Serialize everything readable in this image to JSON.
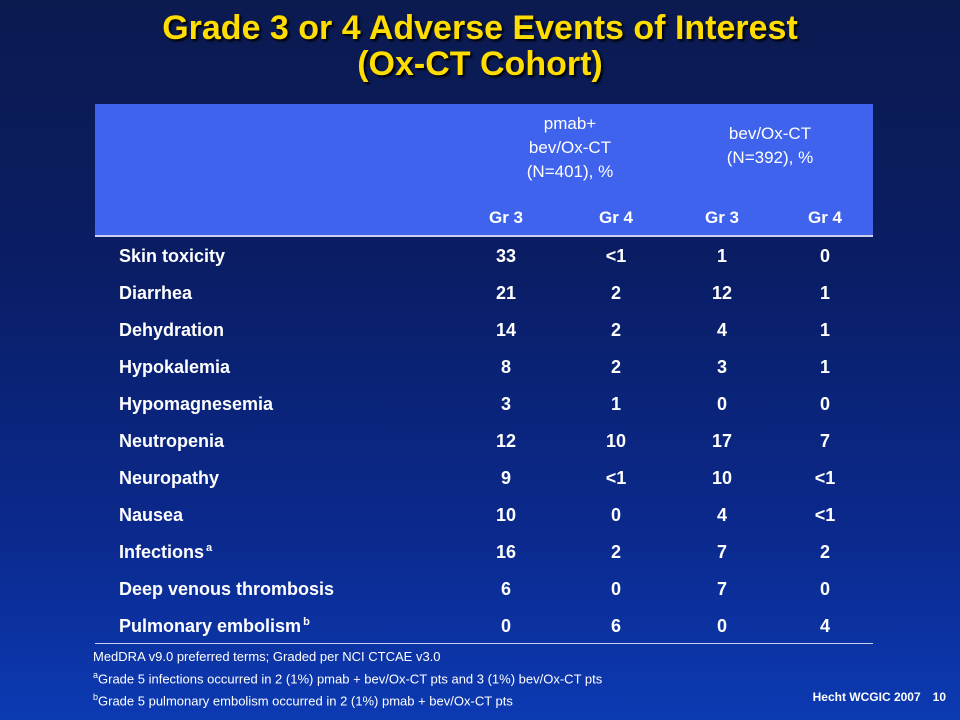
{
  "title": {
    "line1": "Grade 3 or 4 Adverse Events of Interest",
    "line2": "(Ox-CT Cohort)"
  },
  "table": {
    "group1": {
      "line1": "pmab+",
      "line2": "bev/Ox-CT",
      "line3": "(N=401), %"
    },
    "group2": {
      "line1": "bev/Ox-CT",
      "line2": "(N=392), %"
    },
    "subheaders": [
      "Gr 3",
      "Gr 4",
      "Gr 3",
      "Gr 4"
    ],
    "rows": [
      {
        "label": "Skin toxicity",
        "sup": "",
        "values": [
          "33",
          "<1",
          "1",
          "0"
        ]
      },
      {
        "label": "Diarrhea",
        "sup": "",
        "values": [
          "21",
          "2",
          "12",
          "1"
        ]
      },
      {
        "label": "Dehydration",
        "sup": "",
        "values": [
          "14",
          "2",
          "4",
          "1"
        ]
      },
      {
        "label": "Hypokalemia",
        "sup": "",
        "values": [
          "8",
          "2",
          "3",
          "1"
        ]
      },
      {
        "label": "Hypomagnesemia",
        "sup": "",
        "values": [
          "3",
          "1",
          "0",
          "0"
        ]
      },
      {
        "label": "Neutropenia",
        "sup": "",
        "values": [
          "12",
          "10",
          "17",
          "7"
        ]
      },
      {
        "label": "Neuropathy",
        "sup": "",
        "values": [
          "9",
          "<1",
          "10",
          "<1"
        ]
      },
      {
        "label": "Nausea",
        "sup": "",
        "values": [
          "10",
          "0",
          "4",
          "<1"
        ]
      },
      {
        "label": "Infections",
        "sup": "a",
        "values": [
          "16",
          "2",
          "7",
          "2"
        ]
      },
      {
        "label": "Deep venous thrombosis",
        "sup": "",
        "values": [
          "6",
          "0",
          "7",
          "0"
        ]
      },
      {
        "label": "Pulmonary embolism",
        "sup": "b",
        "values": [
          "0",
          "6",
          "0",
          "4"
        ]
      }
    ]
  },
  "notes": {
    "line1": "MedDRA v9.0 preferred terms; Graded per NCI CTCAE v3.0",
    "line2_sup": "a",
    "line2": "Grade 5 infections occurred in 2 (1%) pmab + bev/Ox-CT pts and 3 (1%) bev/Ox-CT pts",
    "line3_sup": "b",
    "line3": "Grade 5 pulmonary embolism occurred in 2 (1%) pmab + bev/Ox-CT pts"
  },
  "footer": {
    "source": "Hecht WCGIC  2007",
    "page": "10"
  }
}
